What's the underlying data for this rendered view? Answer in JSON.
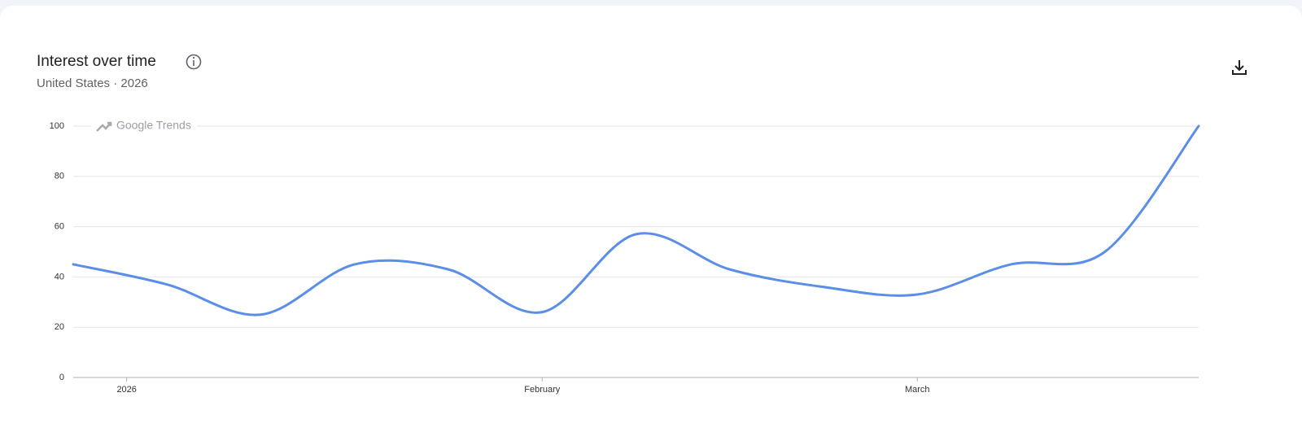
{
  "header": {
    "title": "Interest over time",
    "subtitle": "United States · 2026"
  },
  "chart_data": {
    "type": "line",
    "watermark": "Google Trends",
    "x": [
      0,
      1,
      2,
      3,
      4,
      5,
      6,
      7,
      8,
      9,
      10,
      11,
      12
    ],
    "series": [
      {
        "name": null,
        "color": "#5b8ee6",
        "values": [
          45,
          37,
          25,
          45,
          43,
          26,
          57,
          43,
          36,
          33,
          45,
          50,
          100
        ]
      }
    ],
    "xlim": [
      0,
      12
    ],
    "xticks": [
      {
        "value": 0.57,
        "label": "2026"
      },
      {
        "value": 5,
        "label": "February"
      },
      {
        "value": 9,
        "label": "March"
      }
    ],
    "ylim": [
      0,
      100
    ],
    "yticks": [
      0,
      20,
      40,
      60,
      80,
      100
    ],
    "grid": true,
    "smooth": true
  }
}
